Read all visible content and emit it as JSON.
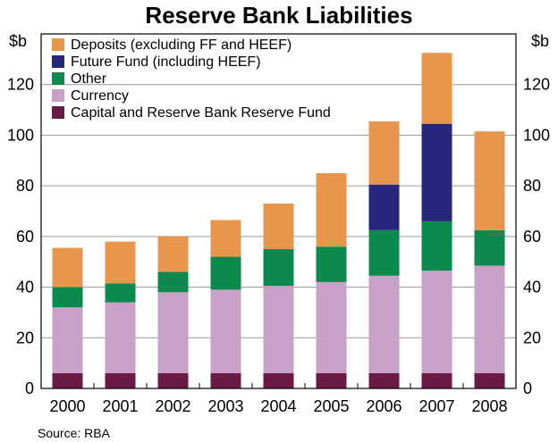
{
  "chart_data": {
    "type": "bar",
    "stacked": true,
    "title": "Reserve Bank Liabilities",
    "ylabel_left": "$b",
    "ylabel_right": "$b",
    "ylim": [
      0,
      140
    ],
    "yticks": [
      0,
      20,
      40,
      60,
      80,
      100,
      120
    ],
    "grid": true,
    "legend_position": "top-left",
    "categories": [
      "2000",
      "2001",
      "2002",
      "2003",
      "2004",
      "2005",
      "2006",
      "2007",
      "2008"
    ],
    "series": [
      {
        "name": "Capital and Reserve Bank Reserve Fund",
        "color": "#6b1a45",
        "values": [
          6,
          6,
          6,
          6,
          6,
          6,
          6,
          6,
          6
        ]
      },
      {
        "name": "Currency",
        "color": "#c9a0c8",
        "values": [
          26,
          28,
          32,
          33,
          34.5,
          36,
          38.5,
          40.5,
          42.5
        ]
      },
      {
        "name": "Other",
        "color": "#0c8a4e",
        "values": [
          8,
          7.5,
          8,
          13,
          14.5,
          14,
          18,
          19.5,
          14
        ]
      },
      {
        "name": "Future Fund (including HEEF)",
        "color": "#26267a",
        "values": [
          0,
          0,
          0,
          0,
          0,
          0,
          18,
          38.5,
          0
        ]
      },
      {
        "name": "Deposits (excluding FF and HEEF)",
        "color": "#e8964c",
        "values": [
          15.5,
          16.5,
          14,
          14.5,
          18,
          29,
          25,
          28,
          39
        ]
      }
    ],
    "legend_order": [
      "Deposits (excluding FF and HEEF)",
      "Future Fund (including HEEF)",
      "Other",
      "Currency",
      "Capital and Reserve Bank Reserve Fund"
    ],
    "source": "Source: RBA"
  }
}
